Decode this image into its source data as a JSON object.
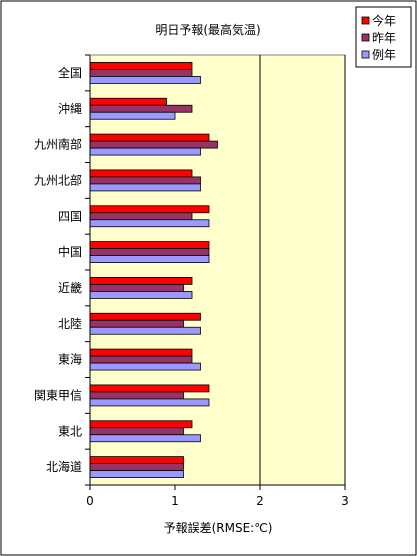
{
  "chart_data": {
    "type": "bar",
    "orientation": "horizontal",
    "title": "明日予報(最高気温)",
    "xlabel": "予報誤差(RMSE:℃)",
    "ylabel": "",
    "xlim": [
      0,
      3
    ],
    "xticks": [
      "0",
      "1",
      "2",
      "3"
    ],
    "grid": "vertical lines at x=2 and x=3",
    "legend_position": "top-right",
    "categories": [
      "全国",
      "沖縄",
      "九州南部",
      "九州北部",
      "四国",
      "中国",
      "近畿",
      "北陸",
      "東海",
      "関東甲信",
      "東北",
      "北海道"
    ],
    "series": [
      {
        "name": "今年",
        "color": "#ff0000",
        "values": [
          1.2,
          0.9,
          1.4,
          1.2,
          1.4,
          1.4,
          1.2,
          1.3,
          1.2,
          1.4,
          1.2,
          1.1
        ]
      },
      {
        "name": "昨年",
        "color": "#993366",
        "values": [
          1.2,
          1.2,
          1.5,
          1.3,
          1.2,
          1.4,
          1.1,
          1.1,
          1.2,
          1.1,
          1.1,
          1.1
        ]
      },
      {
        "name": "例年",
        "color": "#9999ff",
        "values": [
          1.3,
          1.0,
          1.3,
          1.3,
          1.4,
          1.4,
          1.2,
          1.3,
          1.3,
          1.4,
          1.3,
          1.1
        ]
      }
    ],
    "colors": {
      "plot_background": "#ffffcc",
      "gridline": "#000000",
      "bar_outline": "#000000"
    }
  }
}
